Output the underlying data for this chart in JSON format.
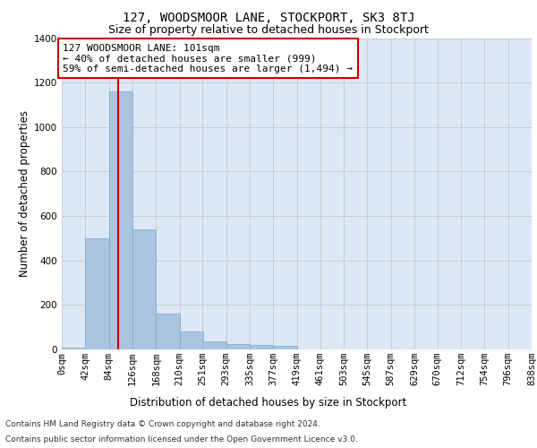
{
  "title": "127, WOODSMOOR LANE, STOCKPORT, SK3 8TJ",
  "subtitle": "Size of property relative to detached houses in Stockport",
  "xlabel": "Distribution of detached houses by size in Stockport",
  "ylabel": "Number of detached properties",
  "bin_edges": [
    0,
    42,
    84,
    126,
    168,
    210,
    251,
    293,
    335,
    377,
    419,
    461,
    503,
    545,
    587,
    629,
    670,
    712,
    754,
    796,
    838
  ],
  "bin_labels": [
    "0sqm",
    "42sqm",
    "84sqm",
    "126sqm",
    "168sqm",
    "210sqm",
    "251sqm",
    "293sqm",
    "335sqm",
    "377sqm",
    "419sqm",
    "461sqm",
    "503sqm",
    "545sqm",
    "587sqm",
    "629sqm",
    "670sqm",
    "712sqm",
    "754sqm",
    "796sqm",
    "838sqm"
  ],
  "bar_heights": [
    10,
    500,
    1160,
    540,
    160,
    80,
    35,
    25,
    20,
    15,
    0,
    0,
    0,
    0,
    0,
    0,
    0,
    0,
    0,
    0
  ],
  "bar_color": "#aac4e0",
  "bar_edge_color": "#7aaac8",
  "grid_color": "#cccccc",
  "background_color": "#dce8f5",
  "property_size": 101,
  "red_line_color": "#cc0000",
  "annotation_text": "127 WOODSMOOR LANE: 101sqm\n← 40% of detached houses are smaller (999)\n59% of semi-detached houses are larger (1,494) →",
  "annotation_box_color": "#ffffff",
  "annotation_border_color": "#cc0000",
  "ylim": [
    0,
    1400
  ],
  "yticks": [
    0,
    200,
    400,
    600,
    800,
    1000,
    1200,
    1400
  ],
  "footer_line1": "Contains HM Land Registry data © Crown copyright and database right 2024.",
  "footer_line2": "Contains public sector information licensed under the Open Government Licence v3.0.",
  "title_fontsize": 10,
  "subtitle_fontsize": 9,
  "axis_label_fontsize": 8.5,
  "tick_fontsize": 7.5,
  "annotation_fontsize": 8,
  "footer_fontsize": 6.5
}
